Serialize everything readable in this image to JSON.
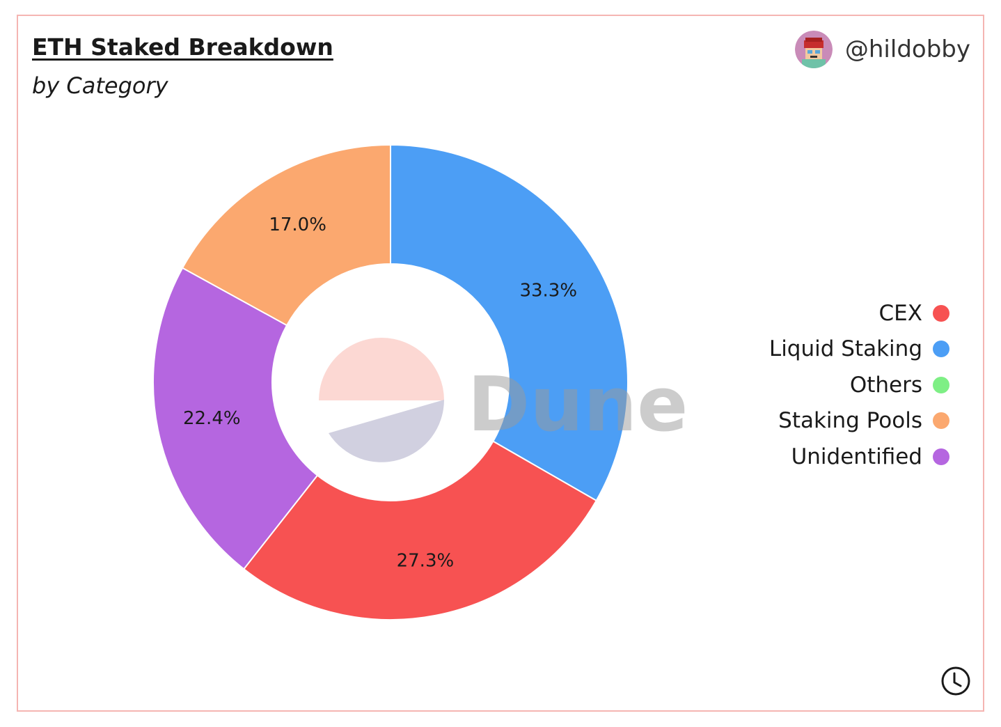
{
  "header": {
    "title": "ETH Staked Breakdown",
    "subtitle": "by Category",
    "author": "@hildobby",
    "avatar_icon": "avatar-icon"
  },
  "watermark": "Dune",
  "footer": {
    "clock_icon": "clock-icon"
  },
  "chart_data": {
    "type": "pie",
    "donut": true,
    "series": [
      {
        "name": "Liquid Staking",
        "value": 33.3,
        "label": "33.3%",
        "color": "#4c9ef5"
      },
      {
        "name": "CEX",
        "value": 27.3,
        "label": "27.3%",
        "color": "#f75252"
      },
      {
        "name": "Unidentified",
        "value": 22.4,
        "label": "22.4%",
        "color": "#b566e0"
      },
      {
        "name": "Staking Pools",
        "value": 17.0,
        "label": "17.0%",
        "color": "#fba86f"
      },
      {
        "name": "Others",
        "value": 0.0,
        "label": "",
        "color": "#7eef85"
      }
    ],
    "legend": {
      "placement": "right",
      "items": [
        {
          "name": "CEX",
          "color": "#f75252"
        },
        {
          "name": "Liquid Staking",
          "color": "#4c9ef5"
        },
        {
          "name": "Others",
          "color": "#7eef85"
        },
        {
          "name": "Staking Pools",
          "color": "#fba86f"
        },
        {
          "name": "Unidentified",
          "color": "#b566e0"
        }
      ]
    }
  }
}
